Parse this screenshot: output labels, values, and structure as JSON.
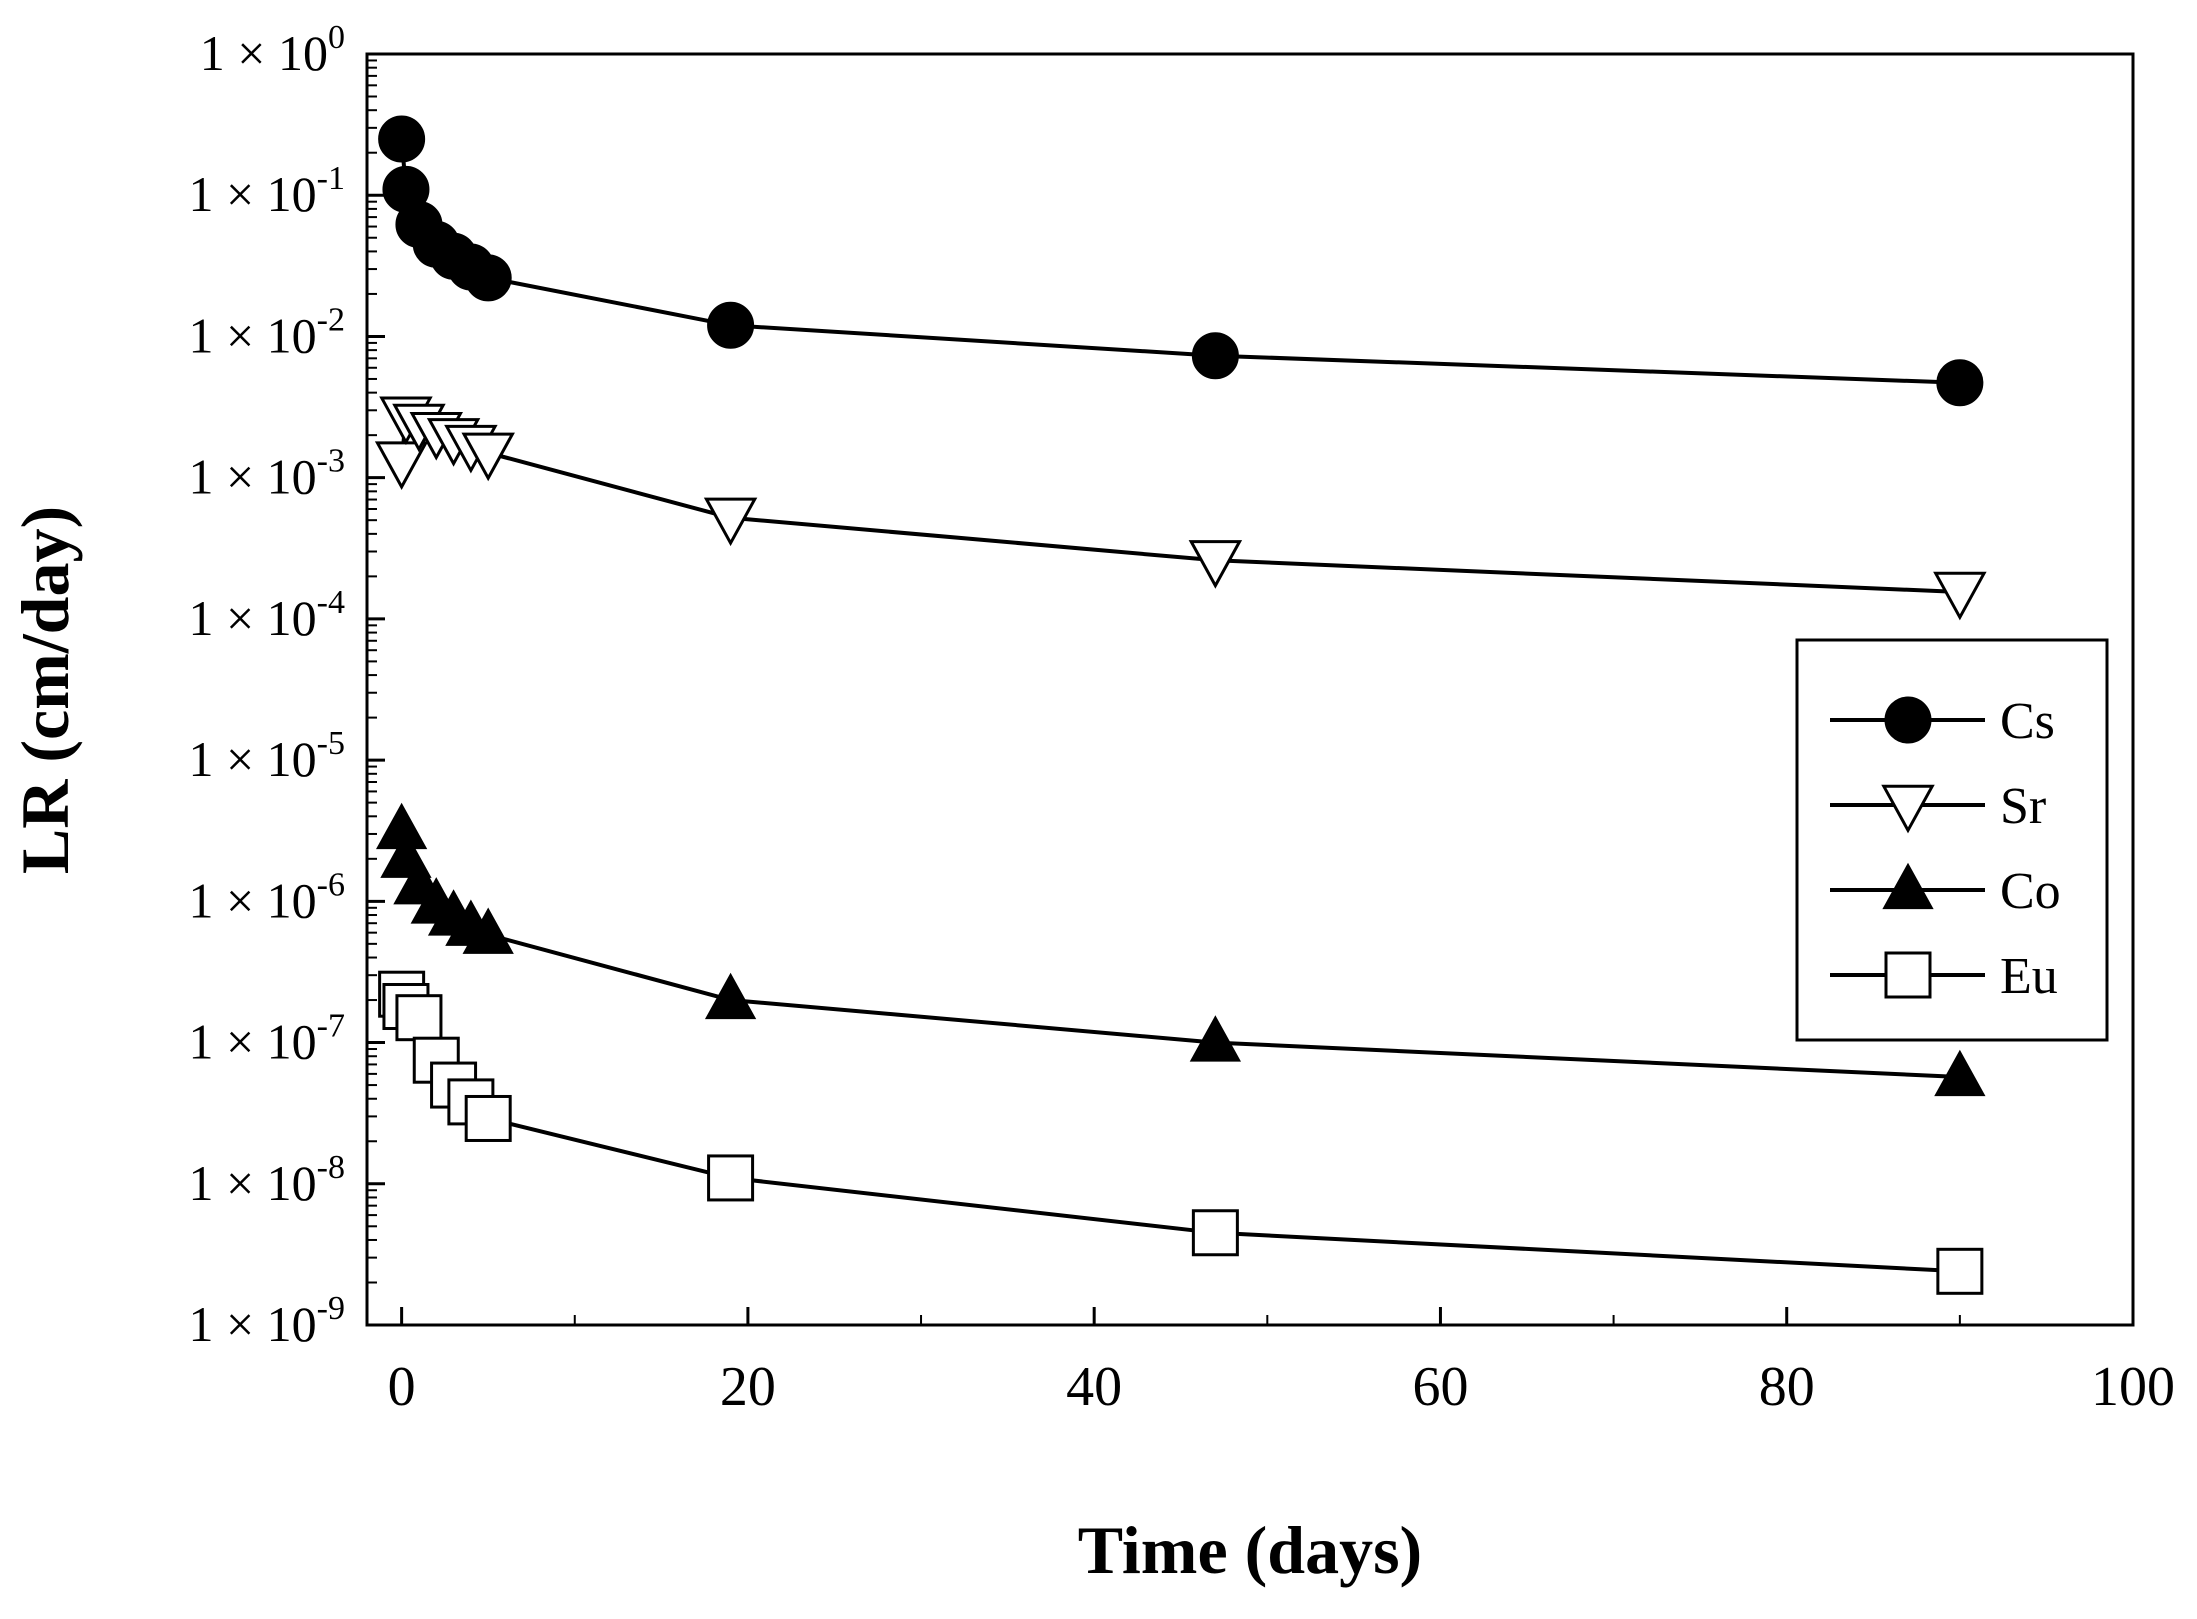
{
  "chart_data": {
    "type": "line",
    "title": "",
    "xlabel": "Time (days)",
    "ylabel": "LR (cm/day)",
    "xlim": [
      -2,
      100
    ],
    "ylim": [
      1e-09,
      1
    ],
    "yscale": "log",
    "x_ticks": [
      0,
      20,
      40,
      60,
      80,
      100
    ],
    "x_tick_labels": [
      "0",
      "20",
      "40",
      "60",
      "80",
      "100"
    ],
    "y_ticks": [
      {
        "exp": 0,
        "base": "1 × 10",
        "sup": "0"
      },
      {
        "exp": -1,
        "base": "1 × 10",
        "sup": "-1"
      },
      {
        "exp": -2,
        "base": "1 × 10",
        "sup": "-2"
      },
      {
        "exp": -3,
        "base": "1 × 10",
        "sup": "-3"
      },
      {
        "exp": -4,
        "base": "1 × 10",
        "sup": "-4"
      },
      {
        "exp": -5,
        "base": "1 × 10",
        "sup": "-5"
      },
      {
        "exp": -6,
        "base": "1 × 10",
        "sup": "-6"
      },
      {
        "exp": -7,
        "base": "1 × 10",
        "sup": "-7"
      },
      {
        "exp": -8,
        "base": "1 × 10",
        "sup": "-8"
      },
      {
        "exp": -9,
        "base": "1 × 10",
        "sup": "-9"
      }
    ],
    "legend_position": "right-middle",
    "series": [
      {
        "name": "Cs",
        "marker": "circle-filled",
        "x": [
          0,
          0.25,
          1,
          2,
          3,
          4,
          5,
          19,
          47,
          90
        ],
        "y": [
          0.25,
          0.11,
          0.062,
          0.045,
          0.037,
          0.031,
          0.026,
          0.012,
          0.0073,
          0.0047
        ]
      },
      {
        "name": "Sr",
        "marker": "triangle-down-open",
        "x": [
          0,
          0.25,
          1,
          2,
          3,
          4,
          5,
          19,
          47,
          90
        ],
        "y": [
          0.0013,
          0.0027,
          0.0024,
          0.0021,
          0.0019,
          0.0017,
          0.0015,
          0.00052,
          0.00026,
          0.000155
        ]
      },
      {
        "name": "Co",
        "marker": "triangle-up-filled",
        "x": [
          0,
          0.25,
          1,
          2,
          3,
          4,
          5,
          19,
          47,
          90
        ],
        "y": [
          3.2e-06,
          2e-06,
          1.3e-06,
          9.5e-07,
          7.8e-07,
          6.6e-07,
          5.8e-07,
          2e-07,
          1e-07,
          5.7e-08
        ]
      },
      {
        "name": "Eu",
        "marker": "square-open",
        "x": [
          0,
          0.25,
          1,
          2,
          3,
          4,
          5,
          19,
          47,
          90
        ],
        "y": [
          2.2e-07,
          1.8e-07,
          1.5e-07,
          7.5e-08,
          5e-08,
          3.8e-08,
          2.9e-08,
          1.1e-08,
          4.5e-09,
          2.4e-09
        ]
      }
    ]
  }
}
